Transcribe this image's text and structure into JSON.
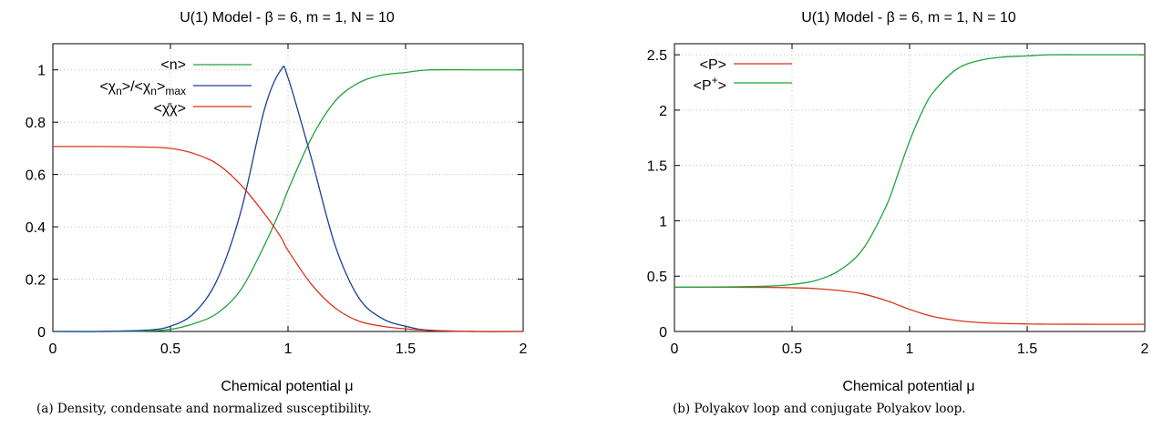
{
  "panels": [
    {
      "title": "U(1) Model - β = 6, m = 1, N = 10",
      "xlabel": "Chemical potential μ",
      "caption": "(a) Density, condensate and normalized susceptibility.",
      "xticks": [
        "0",
        "0.5",
        "1",
        "1.5",
        "2"
      ],
      "yticks": [
        "0",
        "0.2",
        "0.4",
        "0.6",
        "0.8",
        "1"
      ],
      "legend": [
        {
          "base": "<n>",
          "sub": "",
          "tail": "",
          "sub2": "",
          "color": "#1fa33a"
        },
        {
          "base": "<χ",
          "sub": "n",
          "tail": ">/<χ",
          "sub2": "n",
          "tail2": ">",
          "sub3": "max",
          "color": "#1c3f94"
        },
        {
          "base": "<χ̄χ>",
          "sub": "",
          "tail": "",
          "sub2": "",
          "color": "#d8351e"
        }
      ]
    },
    {
      "title": "U(1) Model - β = 6, m = 1, N = 10",
      "xlabel": "Chemical potential μ",
      "caption": "(b) Polyakov loop and conjugate Polyakov loop.",
      "xticks": [
        "0",
        "0.5",
        "1",
        "1.5",
        "2"
      ],
      "yticks": [
        "0",
        "0.5",
        "1",
        "1.5",
        "2",
        "2.5"
      ],
      "legend": [
        {
          "base": "<P>",
          "sup": "",
          "tail": "",
          "color": "#d8351e"
        },
        {
          "base": "<P",
          "sup": "+",
          "tail": ">",
          "color": "#1fa33a"
        }
      ]
    }
  ],
  "chart_data": [
    {
      "type": "line",
      "title": "U(1) Model - β = 6, m = 1, N = 10",
      "xlabel": "Chemical potential μ",
      "ylabel": "",
      "xlim": [
        0,
        2
      ],
      "ylim": [
        0,
        1.1
      ],
      "grid": true,
      "legend_position": "top-left",
      "x": [
        0,
        0.2,
        0.4,
        0.5,
        0.6,
        0.7,
        0.8,
        0.9,
        0.97,
        1.0,
        1.1,
        1.2,
        1.3,
        1.4,
        1.5,
        1.6,
        1.8,
        2.0
      ],
      "series": [
        {
          "name": "<n>",
          "color": "#1fa33a",
          "values": [
            0.0,
            0.0,
            0.002,
            0.008,
            0.03,
            0.07,
            0.16,
            0.33,
            0.47,
            0.54,
            0.74,
            0.88,
            0.95,
            0.98,
            0.99,
            1.0,
            1.0,
            1.0
          ]
        },
        {
          "name": "<χn>/<χn>max",
          "color": "#1c3f94",
          "values": [
            0.0,
            0.0,
            0.005,
            0.02,
            0.07,
            0.2,
            0.46,
            0.85,
            1.0,
            0.97,
            0.66,
            0.33,
            0.13,
            0.05,
            0.02,
            0.005,
            0.0,
            0.0
          ]
        },
        {
          "name": "<χ̄χ>",
          "color": "#d8351e",
          "values": [
            0.707,
            0.707,
            0.705,
            0.7,
            0.68,
            0.64,
            0.56,
            0.45,
            0.36,
            0.31,
            0.18,
            0.09,
            0.04,
            0.02,
            0.01,
            0.004,
            0.0,
            0.0
          ]
        }
      ]
    },
    {
      "type": "line",
      "title": "U(1) Model - β = 6, m = 1, N = 10",
      "xlabel": "Chemical potential μ",
      "ylabel": "",
      "xlim": [
        0,
        2
      ],
      "ylim": [
        0,
        2.6
      ],
      "grid": true,
      "legend_position": "top-left",
      "x": [
        0,
        0.2,
        0.4,
        0.5,
        0.6,
        0.7,
        0.8,
        0.9,
        0.95,
        1.0,
        1.05,
        1.1,
        1.2,
        1.3,
        1.4,
        1.5,
        1.6,
        1.8,
        2.0
      ],
      "series": [
        {
          "name": "<P>",
          "color": "#d8351e",
          "values": [
            0.4,
            0.4,
            0.398,
            0.395,
            0.388,
            0.37,
            0.34,
            0.28,
            0.24,
            0.2,
            0.165,
            0.135,
            0.1,
            0.08,
            0.072,
            0.068,
            0.066,
            0.065,
            0.065
          ]
        },
        {
          "name": "<P+>",
          "color": "#1fa33a",
          "values": [
            0.4,
            0.402,
            0.41,
            0.425,
            0.46,
            0.55,
            0.74,
            1.13,
            1.42,
            1.72,
            1.97,
            2.16,
            2.37,
            2.45,
            2.48,
            2.49,
            2.5,
            2.5,
            2.5
          ]
        }
      ]
    }
  ]
}
